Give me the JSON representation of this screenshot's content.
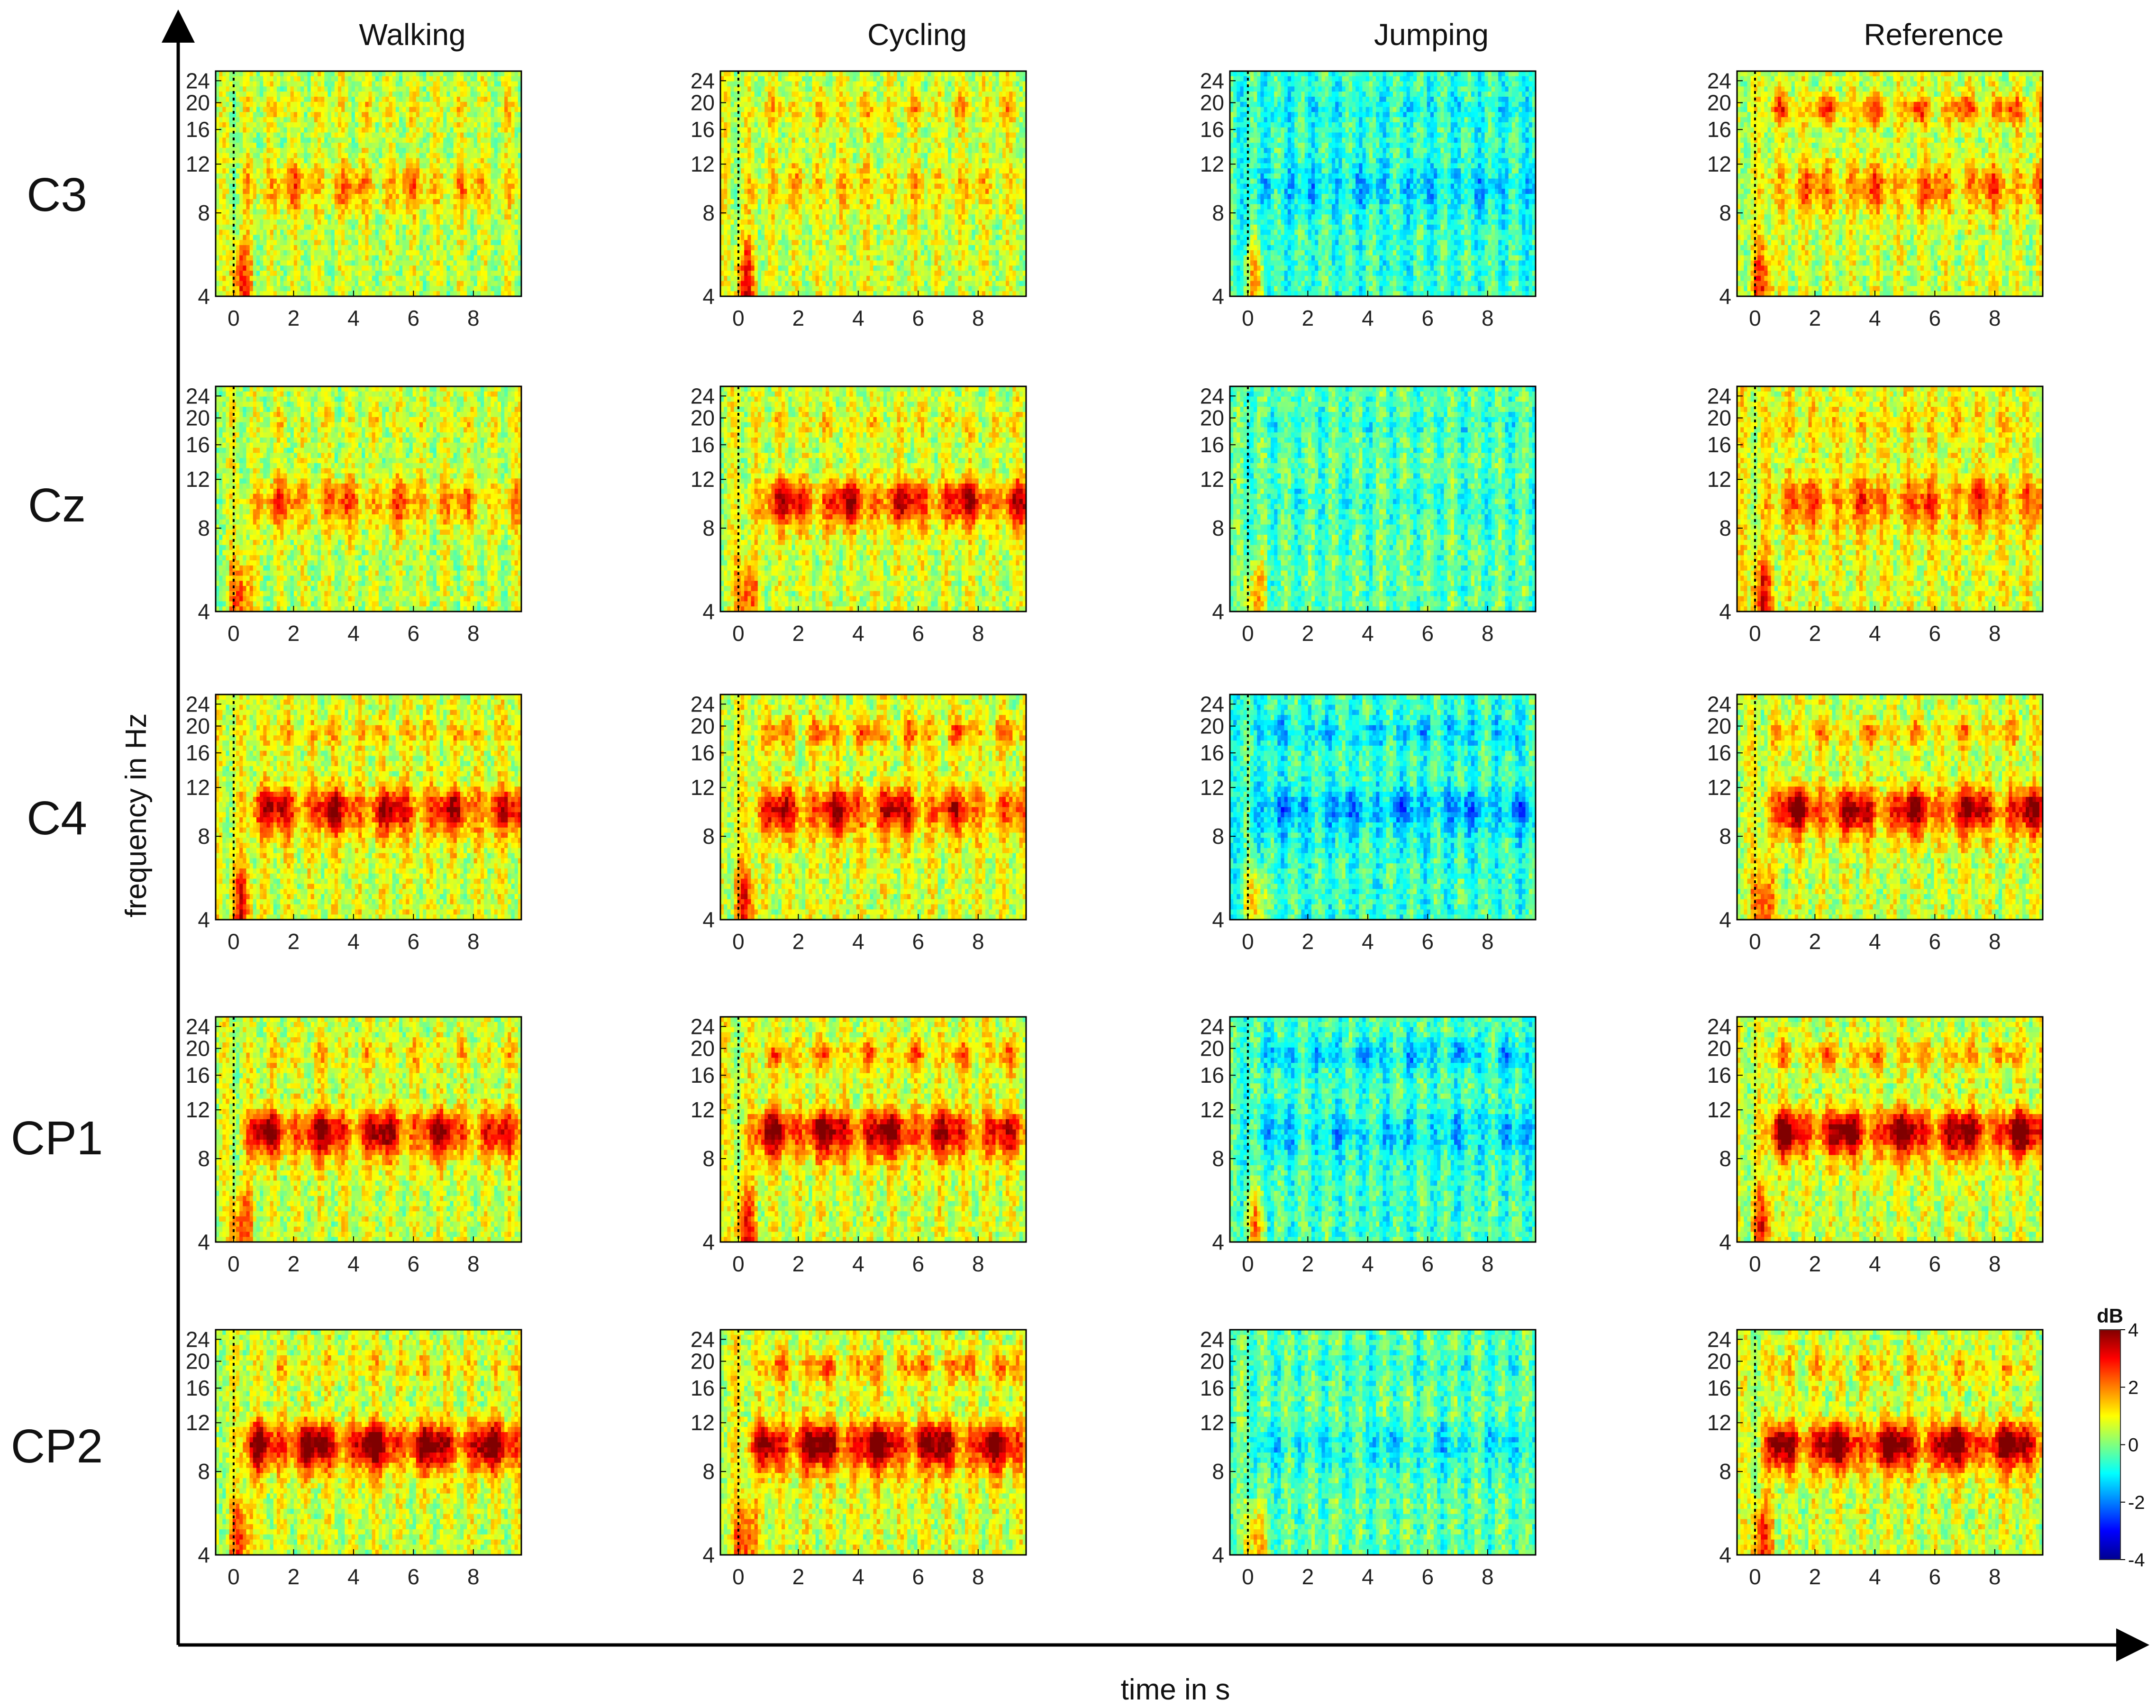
{
  "chart_data": {
    "type": "heatmap",
    "description_kind": "time-frequency ERSP grid",
    "x_axis_title": "time in s",
    "y_axis_title": "frequency in Hz",
    "conditions": [
      "Walking",
      "Cycling",
      "Jumping",
      "Reference"
    ],
    "channels": [
      "C3",
      "Cz",
      "C4",
      "CP1",
      "CP2"
    ],
    "x_ticks": [
      "0",
      "2",
      "4",
      "6",
      "8"
    ],
    "x_tick_values": [
      0,
      2,
      4,
      6,
      8
    ],
    "xlim": [
      -0.6,
      9.6
    ],
    "y_ticks": [
      "4",
      "8",
      "12",
      "16",
      "20",
      "24"
    ],
    "y_tick_values": [
      4,
      8,
      12,
      16,
      20,
      24
    ],
    "ylim": [
      4,
      26
    ],
    "y_scale": "log",
    "event_marker_time": 0,
    "colorbar": {
      "unit": "dB",
      "ticks": [
        "4",
        "2",
        "0",
        "-2",
        "-4"
      ],
      "tick_values": [
        4,
        2,
        0,
        -2,
        -4
      ],
      "range": [
        -4,
        4
      ],
      "colormap": "jet",
      "placement": "right of bottom-right panel"
    },
    "panels": [
      {
        "channel": "C3",
        "condition": "Walking",
        "baseline": 0.5,
        "alpha": 1.6,
        "beta": 0.6,
        "onset": 0.5,
        "fade": 0.7
      },
      {
        "channel": "C3",
        "condition": "Cycling",
        "baseline": 0.6,
        "alpha": 0.9,
        "beta": 0.9,
        "onset": 0.5,
        "fade": 0.8
      },
      {
        "channel": "C3",
        "condition": "Jumping",
        "baseline": -0.6,
        "alpha": -0.9,
        "beta": -0.5,
        "onset": 0.5,
        "fade": 1.0
      },
      {
        "channel": "C3",
        "condition": "Reference",
        "baseline": 0.6,
        "alpha": 1.8,
        "beta": 2.0,
        "onset": 0.8,
        "fade": 1.0
      },
      {
        "channel": "Cz",
        "condition": "Walking",
        "baseline": 0.5,
        "alpha": 2.0,
        "beta": 0.5,
        "onset": 1.0,
        "fade": 0.55
      },
      {
        "channel": "Cz",
        "condition": "Cycling",
        "baseline": 0.6,
        "alpha": 3.0,
        "beta": 0.7,
        "onset": 1.0,
        "fade": 1.0
      },
      {
        "channel": "Cz",
        "condition": "Jumping",
        "baseline": -0.3,
        "alpha": -0.4,
        "beta": -0.5,
        "onset": 0.5,
        "fade": 1.0
      },
      {
        "channel": "Cz",
        "condition": "Reference",
        "baseline": 0.8,
        "alpha": 1.8,
        "beta": 0.6,
        "onset": 0.8,
        "fade": 1.0
      },
      {
        "channel": "C4",
        "condition": "Walking",
        "baseline": 0.7,
        "alpha": 3.0,
        "beta": 0.9,
        "onset": 0.8,
        "fade": 0.9
      },
      {
        "channel": "C4",
        "condition": "Cycling",
        "baseline": 0.7,
        "alpha": 3.0,
        "beta": 1.6,
        "onset": 1.0,
        "fade": 0.55
      },
      {
        "channel": "C4",
        "condition": "Jumping",
        "baseline": -0.6,
        "alpha": -1.4,
        "beta": -1.0,
        "onset": 0.5,
        "fade": 1.0
      },
      {
        "channel": "C4",
        "condition": "Reference",
        "baseline": 0.6,
        "alpha": 3.4,
        "beta": 1.2,
        "onset": 0.8,
        "fade": 1.0
      },
      {
        "channel": "CP1",
        "condition": "Walking",
        "baseline": 0.6,
        "alpha": 3.5,
        "beta": 0.8,
        "onset": 0.8,
        "fade": 0.75
      },
      {
        "channel": "CP1",
        "condition": "Cycling",
        "baseline": 0.7,
        "alpha": 3.6,
        "beta": 1.4,
        "onset": 1.0,
        "fade": 0.7
      },
      {
        "channel": "CP1",
        "condition": "Jumping",
        "baseline": -0.5,
        "alpha": -1.0,
        "beta": -1.2,
        "onset": 0.5,
        "fade": 1.0
      },
      {
        "channel": "CP1",
        "condition": "Reference",
        "baseline": 0.6,
        "alpha": 3.8,
        "beta": 1.4,
        "onset": 0.8,
        "fade": 1.0
      },
      {
        "channel": "CP2",
        "condition": "Walking",
        "baseline": 0.6,
        "alpha": 4.0,
        "beta": 0.8,
        "onset": 0.8,
        "fade": 1.0
      },
      {
        "channel": "CP2",
        "condition": "Cycling",
        "baseline": 0.7,
        "alpha": 4.0,
        "beta": 1.6,
        "onset": 1.0,
        "fade": 0.85
      },
      {
        "channel": "CP2",
        "condition": "Jumping",
        "baseline": -0.3,
        "alpha": -1.0,
        "beta": -0.4,
        "onset": 0.5,
        "fade": 1.0
      },
      {
        "channel": "CP2",
        "condition": "Reference",
        "baseline": 0.6,
        "alpha": 4.0,
        "beta": 1.0,
        "onset": 0.8,
        "fade": 1.0
      }
    ]
  }
}
